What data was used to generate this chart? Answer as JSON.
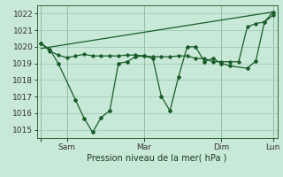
{
  "title": "",
  "xlabel": "Pression niveau de la mer( hPa )",
  "ylim": [
    1014.5,
    1022.5
  ],
  "yticks": [
    1015,
    1016,
    1017,
    1018,
    1019,
    1020,
    1021,
    1022
  ],
  "xtick_labels": [
    "",
    "Sam",
    "Mar",
    "Dim",
    "Lun"
  ],
  "bg_color": "#c8e8d8",
  "grid_color": "#a0ccb8",
  "line_color": "#1a5c2a",
  "series1_x": [
    0,
    1,
    2,
    4,
    5,
    6,
    7,
    8,
    9,
    10,
    11,
    12,
    13,
    14,
    15,
    16,
    17,
    18,
    19,
    20,
    21,
    22,
    24,
    25,
    26,
    27
  ],
  "series1_y": [
    1020.2,
    1019.85,
    1019.0,
    1016.8,
    1015.7,
    1014.85,
    1015.75,
    1016.15,
    1019.0,
    1019.1,
    1019.4,
    1019.45,
    1019.3,
    1017.0,
    1016.15,
    1018.2,
    1020.0,
    1020.0,
    1019.1,
    1019.3,
    1019.0,
    1018.85,
    1018.7,
    1019.15,
    1021.5,
    1022.1
  ],
  "series2_x": [
    0,
    1,
    2,
    3,
    4,
    5,
    6,
    7,
    8,
    9,
    10,
    11,
    12,
    13,
    14,
    15,
    16,
    17,
    18,
    19,
    20,
    21,
    22,
    23,
    24,
    25,
    26,
    27
  ],
  "series2_y": [
    1020.2,
    1019.75,
    1019.5,
    1019.35,
    1019.45,
    1019.55,
    1019.45,
    1019.45,
    1019.45,
    1019.45,
    1019.5,
    1019.5,
    1019.45,
    1019.4,
    1019.4,
    1019.4,
    1019.45,
    1019.45,
    1019.3,
    1019.3,
    1019.1,
    1019.1,
    1019.1,
    1019.1,
    1021.2,
    1021.4,
    1021.5,
    1021.9
  ],
  "trend_x": [
    0,
    27
  ],
  "trend_y": [
    1019.9,
    1022.1
  ],
  "xtick_x": [
    0,
    3,
    12,
    21,
    27
  ],
  "vline_x": [
    0,
    3,
    12,
    21,
    27
  ]
}
